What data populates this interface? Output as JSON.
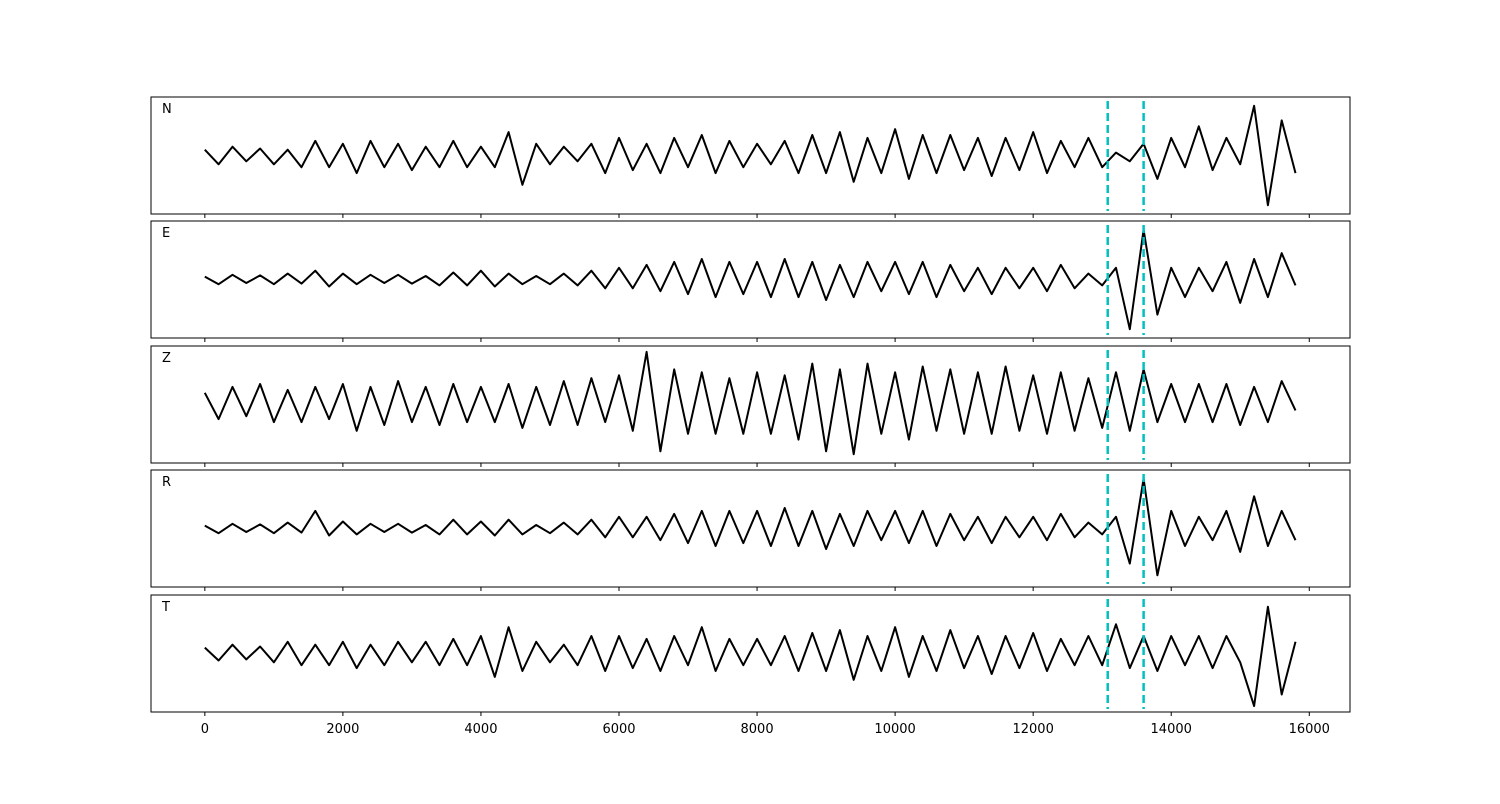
{
  "chart_data": {
    "type": "line",
    "layout": "5 stacked panels sharing x axis",
    "xlim": [
      -780,
      16590
    ],
    "ylim": [
      -1,
      1
    ],
    "grid": false,
    "x_ticks": [
      0,
      2000,
      4000,
      6000,
      8000,
      10000,
      12000,
      14000,
      16000
    ],
    "x_tick_labels": [
      "0",
      "2000",
      "4000",
      "6000",
      "8000",
      "10000",
      "12000",
      "14000",
      "16000"
    ],
    "y_ticks_visible": false,
    "line_color": "#000000",
    "vline_color": "#00c0c0",
    "vline_style": "dashed",
    "vlines": [
      13080,
      13600
    ],
    "x_start": 0,
    "x_step": 200,
    "panels": [
      {
        "label": "N",
        "values": [
          0.1,
          -0.15,
          0.15,
          -0.1,
          0.12,
          -0.15,
          0.1,
          -0.2,
          0.25,
          -0.2,
          0.2,
          -0.3,
          0.25,
          -0.2,
          0.2,
          -0.25,
          0.15,
          -0.2,
          0.25,
          -0.2,
          0.15,
          -0.2,
          0.4,
          -0.5,
          0.2,
          -0.15,
          0.15,
          -0.1,
          0.2,
          -0.3,
          0.3,
          -0.25,
          0.2,
          -0.3,
          0.3,
          -0.2,
          0.35,
          -0.3,
          0.25,
          -0.2,
          0.2,
          -0.15,
          0.25,
          -0.3,
          0.35,
          -0.3,
          0.4,
          -0.45,
          0.3,
          -0.3,
          0.45,
          -0.4,
          0.35,
          -0.3,
          0.35,
          -0.25,
          0.3,
          -0.35,
          0.3,
          -0.25,
          0.4,
          -0.3,
          0.25,
          -0.2,
          0.3,
          -0.2,
          0.05,
          -0.1,
          0.2,
          -0.4,
          0.3,
          -0.2,
          0.5,
          -0.25,
          0.3,
          -0.15,
          0.85,
          -0.85,
          0.6,
          -0.3
        ]
      },
      {
        "label": "E",
        "values": [
          0.05,
          -0.08,
          0.08,
          -0.06,
          0.07,
          -0.08,
          0.1,
          -0.07,
          0.15,
          -0.12,
          0.1,
          -0.08,
          0.08,
          -0.06,
          0.08,
          -0.07,
          0.06,
          -0.1,
          0.12,
          -0.1,
          0.15,
          -0.12,
          0.1,
          -0.08,
          0.06,
          -0.08,
          0.1,
          -0.1,
          0.15,
          -0.15,
          0.2,
          -0.15,
          0.25,
          -0.2,
          0.3,
          -0.25,
          0.35,
          -0.3,
          0.3,
          -0.25,
          0.3,
          -0.3,
          0.35,
          -0.3,
          0.3,
          -0.35,
          0.25,
          -0.3,
          0.3,
          -0.2,
          0.3,
          -0.25,
          0.3,
          -0.3,
          0.25,
          -0.2,
          0.2,
          -0.25,
          0.2,
          -0.15,
          0.2,
          -0.2,
          0.25,
          -0.15,
          0.1,
          -0.1,
          0.2,
          -0.85,
          0.85,
          -0.6,
          0.2,
          -0.3,
          0.2,
          -0.2,
          0.3,
          -0.4,
          0.35,
          -0.3,
          0.45,
          -0.1
        ]
      },
      {
        "label": "Z",
        "values": [
          0.2,
          -0.25,
          0.3,
          -0.2,
          0.35,
          -0.3,
          0.25,
          -0.3,
          0.3,
          -0.25,
          0.35,
          -0.45,
          0.3,
          -0.35,
          0.4,
          -0.3,
          0.3,
          -0.35,
          0.35,
          -0.3,
          0.3,
          -0.3,
          0.35,
          -0.4,
          0.3,
          -0.35,
          0.4,
          -0.35,
          0.45,
          -0.3,
          0.5,
          -0.45,
          0.9,
          -0.8,
          0.6,
          -0.5,
          0.55,
          -0.5,
          0.45,
          -0.5,
          0.55,
          -0.5,
          0.5,
          -0.6,
          0.7,
          -0.8,
          0.6,
          -0.85,
          0.7,
          -0.5,
          0.55,
          -0.6,
          0.65,
          -0.45,
          0.6,
          -0.5,
          0.55,
          -0.5,
          0.65,
          -0.45,
          0.5,
          -0.5,
          0.55,
          -0.45,
          0.45,
          -0.4,
          0.55,
          -0.45,
          0.6,
          -0.3,
          0.35,
          -0.3,
          0.35,
          -0.3,
          0.35,
          -0.35,
          0.3,
          -0.3,
          0.4,
          -0.1
        ]
      },
      {
        "label": "R",
        "values": [
          0.05,
          -0.08,
          0.08,
          -0.06,
          0.07,
          -0.08,
          0.1,
          -0.07,
          0.3,
          -0.12,
          0.12,
          -0.1,
          0.08,
          -0.06,
          0.08,
          -0.07,
          0.06,
          -0.1,
          0.15,
          -0.1,
          0.12,
          -0.12,
          0.15,
          -0.1,
          0.06,
          -0.08,
          0.1,
          -0.1,
          0.15,
          -0.15,
          0.2,
          -0.15,
          0.2,
          -0.2,
          0.25,
          -0.25,
          0.3,
          -0.3,
          0.3,
          -0.25,
          0.3,
          -0.3,
          0.35,
          -0.3,
          0.3,
          -0.35,
          0.25,
          -0.3,
          0.3,
          -0.2,
          0.3,
          -0.25,
          0.3,
          -0.3,
          0.25,
          -0.2,
          0.2,
          -0.25,
          0.2,
          -0.15,
          0.2,
          -0.2,
          0.25,
          -0.15,
          0.1,
          -0.1,
          0.2,
          -0.6,
          0.85,
          -0.8,
          0.3,
          -0.3,
          0.2,
          -0.2,
          0.3,
          -0.4,
          0.55,
          -0.3,
          0.3,
          -0.2
        ]
      },
      {
        "label": "T",
        "values": [
          0.1,
          -0.12,
          0.15,
          -0.1,
          0.12,
          -0.15,
          0.2,
          -0.2,
          0.15,
          -0.2,
          0.2,
          -0.25,
          0.15,
          -0.2,
          0.2,
          -0.15,
          0.2,
          -0.2,
          0.25,
          -0.2,
          0.3,
          -0.4,
          0.45,
          -0.3,
          0.2,
          -0.15,
          0.15,
          -0.2,
          0.3,
          -0.3,
          0.3,
          -0.25,
          0.25,
          -0.3,
          0.3,
          -0.2,
          0.45,
          -0.3,
          0.25,
          -0.2,
          0.25,
          -0.2,
          0.3,
          -0.3,
          0.35,
          -0.3,
          0.4,
          -0.45,
          0.3,
          -0.3,
          0.45,
          -0.4,
          0.3,
          -0.3,
          0.4,
          -0.25,
          0.3,
          -0.35,
          0.3,
          -0.25,
          0.35,
          -0.3,
          0.25,
          -0.2,
          0.3,
          -0.2,
          0.5,
          -0.25,
          0.3,
          -0.3,
          0.3,
          -0.2,
          0.3,
          -0.25,
          0.3,
          -0.15,
          -0.9,
          0.8,
          -0.7,
          0.2
        ]
      }
    ]
  }
}
